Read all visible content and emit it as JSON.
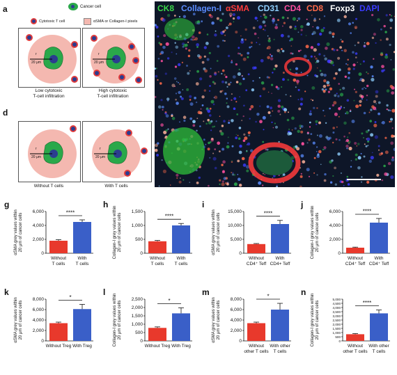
{
  "colors": {
    "red_bar": "#e8392c",
    "blue_bar": "#3a5fc8",
    "tumor": "#2aa84a",
    "tcell_outer": "#e23b3b",
    "tcell_inner": "#2b3d8f",
    "pink_zone": "#f4b8b0"
  },
  "panel_a": {
    "letter": "a",
    "legend_cancer": "Cancer cell",
    "legend_tcell": "Cytotoxic T cell",
    "legend_pixels": "αSMA or Collagen-I pixels",
    "radius_label": "r",
    "distance_label": "20 μm",
    "caption_low": "Low cytotoxic\nT-cell infiltration",
    "caption_high": "High cytotoxic\nT-cell infiltration"
  },
  "panel_d": {
    "letter": "d",
    "radius_label": "r",
    "distance_label": "20 μm",
    "caption_without": "Without T cells",
    "caption_with": "With T cells"
  },
  "micrograph": {
    "channels": [
      {
        "name": "CK8",
        "color": "#3bd84a"
      },
      {
        "name": "Collagen-I",
        "color": "#5a8cff"
      },
      {
        "name": "αSMA",
        "color": "#ff3b3b"
      },
      {
        "name": "CD31",
        "color": "#8fd0ff"
      },
      {
        "name": "CD4",
        "color": "#ff4fa0"
      },
      {
        "name": "CD8",
        "color": "#ff6a4a"
      },
      {
        "name": "Foxp3",
        "color": "#ffffff"
      },
      {
        "name": "DAPI",
        "color": "#3b3bff"
      }
    ]
  },
  "chart_data": [
    {
      "letter": "g",
      "type": "bar",
      "categories": [
        "Without\nT cells",
        "With\nT cells"
      ],
      "values": [
        1800,
        4500
      ],
      "errors": [
        150,
        300
      ],
      "ylabel": "αSMA grey values within\n20 μm of cancer cells",
      "yticks": [
        "0",
        "2,000",
        "4,000",
        "6,000"
      ],
      "ylim": [
        0,
        6000
      ],
      "sig": "****"
    },
    {
      "letter": "h",
      "type": "bar",
      "categories": [
        "Without\nT cells",
        "With\nT cells"
      ],
      "values": [
        430,
        1000
      ],
      "errors": [
        30,
        70
      ],
      "ylabel": "Collagen-I grey values within\n20 μm of cancer cells",
      "yticks": [
        "0",
        "500",
        "1,000",
        "1,500"
      ],
      "ylim": [
        0,
        1500
      ],
      "sig": "****"
    },
    {
      "letter": "i",
      "type": "bar",
      "categories": [
        "Without\nCD4⁺ Teff",
        "With\nCD4+ Teff"
      ],
      "values": [
        3300,
        10500
      ],
      "errors": [
        200,
        1300
      ],
      "ylabel": "αSMA grey values within\n20 μm of cancer cells",
      "yticks": [
        "0",
        "5,000",
        "10,000",
        "15,000"
      ],
      "ylim": [
        0,
        15000
      ],
      "sig": "****"
    },
    {
      "letter": "j",
      "type": "bar",
      "categories": [
        "Without\nCD4⁺ Teff",
        "With\nCD4⁺ Teff"
      ],
      "values": [
        800,
        4400
      ],
      "errors": [
        80,
        600
      ],
      "ylabel": "Collagen-I grey values within\n20 μm of cancer cells",
      "yticks": [
        "0",
        "2,000",
        "4,000",
        "6,000"
      ],
      "ylim": [
        0,
        6000
      ],
      "sig": "****"
    },
    {
      "letter": "k",
      "type": "bar",
      "categories": [
        "Without Treg",
        "With Treg"
      ],
      "values": [
        3400,
        6100
      ],
      "errors": [
        200,
        900
      ],
      "ylabel": "αSMA grey values within\n20 μm of cancer cells",
      "yticks": [
        "0",
        "2,000",
        "4,000",
        "6,000",
        "8,000"
      ],
      "ylim": [
        0,
        8000
      ],
      "sig": "*"
    },
    {
      "letter": "l",
      "type": "bar",
      "categories": [
        "Without Treg",
        "With Treg"
      ],
      "values": [
        780,
        1650
      ],
      "errors": [
        60,
        330
      ],
      "ylabel": "Collagen-I grey values within\n20 μm of cancer cells",
      "yticks": [
        "0",
        "500",
        "1,000",
        "1,500",
        "2,000",
        "2,500"
      ],
      "ylim": [
        0,
        2500
      ],
      "sig": "*"
    },
    {
      "letter": "m",
      "type": "bar",
      "categories": [
        "Without\nother T cells",
        "With other\nT cells"
      ],
      "values": [
        3400,
        6000
      ],
      "errors": [
        200,
        1200
      ],
      "ylabel": "αSMA grey values within\n20 μm of cancer cells",
      "yticks": [
        "0",
        "2,000",
        "4,000",
        "6,000",
        "8,000"
      ],
      "ylim": [
        0,
        8000
      ],
      "sig": "*"
    },
    {
      "letter": "n",
      "type": "bar",
      "categories": [
        "Without\nother T cells",
        "With other\nT cells"
      ],
      "values": [
        800,
        3300
      ],
      "errors": [
        80,
        400
      ],
      "ylabel": "Collagen-I grey values within\n20 μm of cancer cells",
      "yticks": [
        "0",
        "500",
        "1,000",
        "1,500",
        "2,000",
        "2,500",
        "3,000",
        "3,500",
        "4,000",
        "4,500",
        "5,000"
      ],
      "ylim": [
        0,
        5000
      ],
      "sig": "****"
    }
  ]
}
